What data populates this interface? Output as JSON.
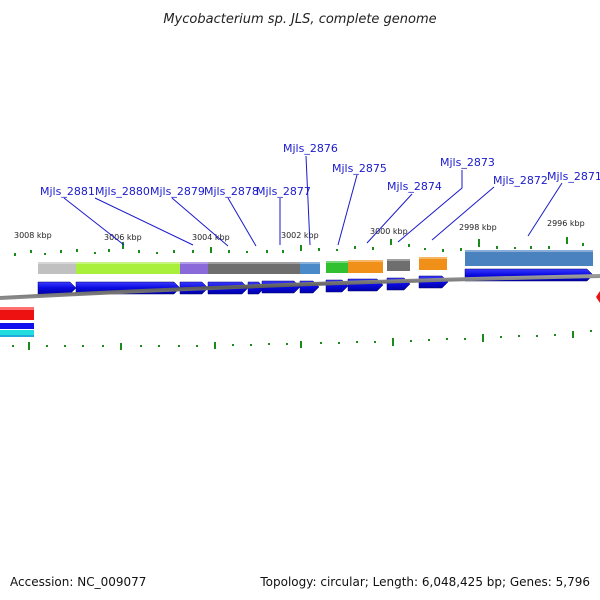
{
  "title": "Mycobacterium sp. JLS, complete genome",
  "footer": {
    "accession": "Accession: NC_009077",
    "summary": "Topology: circular; Length: 6,048,425 bp; Genes: 5,796"
  },
  "colors": {
    "forward_arrow": "#1010ee",
    "label": "#1a1acc",
    "tick": "#1a8a1a",
    "backbone": "#6a6a6a",
    "red_marker": "#ee1111"
  },
  "kbp_labels": [
    "3008 kbp",
    "3006 kbp",
    "3004 kbp",
    "3002 kbp",
    "3000 kbp",
    "2998 kbp",
    "2996 kbp"
  ],
  "gene_labels": [
    "Mjls_2881",
    "Mjls_2880",
    "Mjls_2879",
    "Mjls_2878",
    "Mjls_2877",
    "Mjls_2876",
    "Mjls_2875",
    "Mjls_2874",
    "Mjls_2873",
    "Mjls_2872",
    "Mjls_2871"
  ],
  "cog_colors": [
    "#c0c0c0",
    "#a8f03c",
    "#8a6ad8",
    "#6e6e6e",
    "#6e6e6e",
    "#4a8ac8",
    "#30c030",
    "#f09018",
    "#6e6e6e",
    "#f09018",
    "#4a82c0"
  ]
}
